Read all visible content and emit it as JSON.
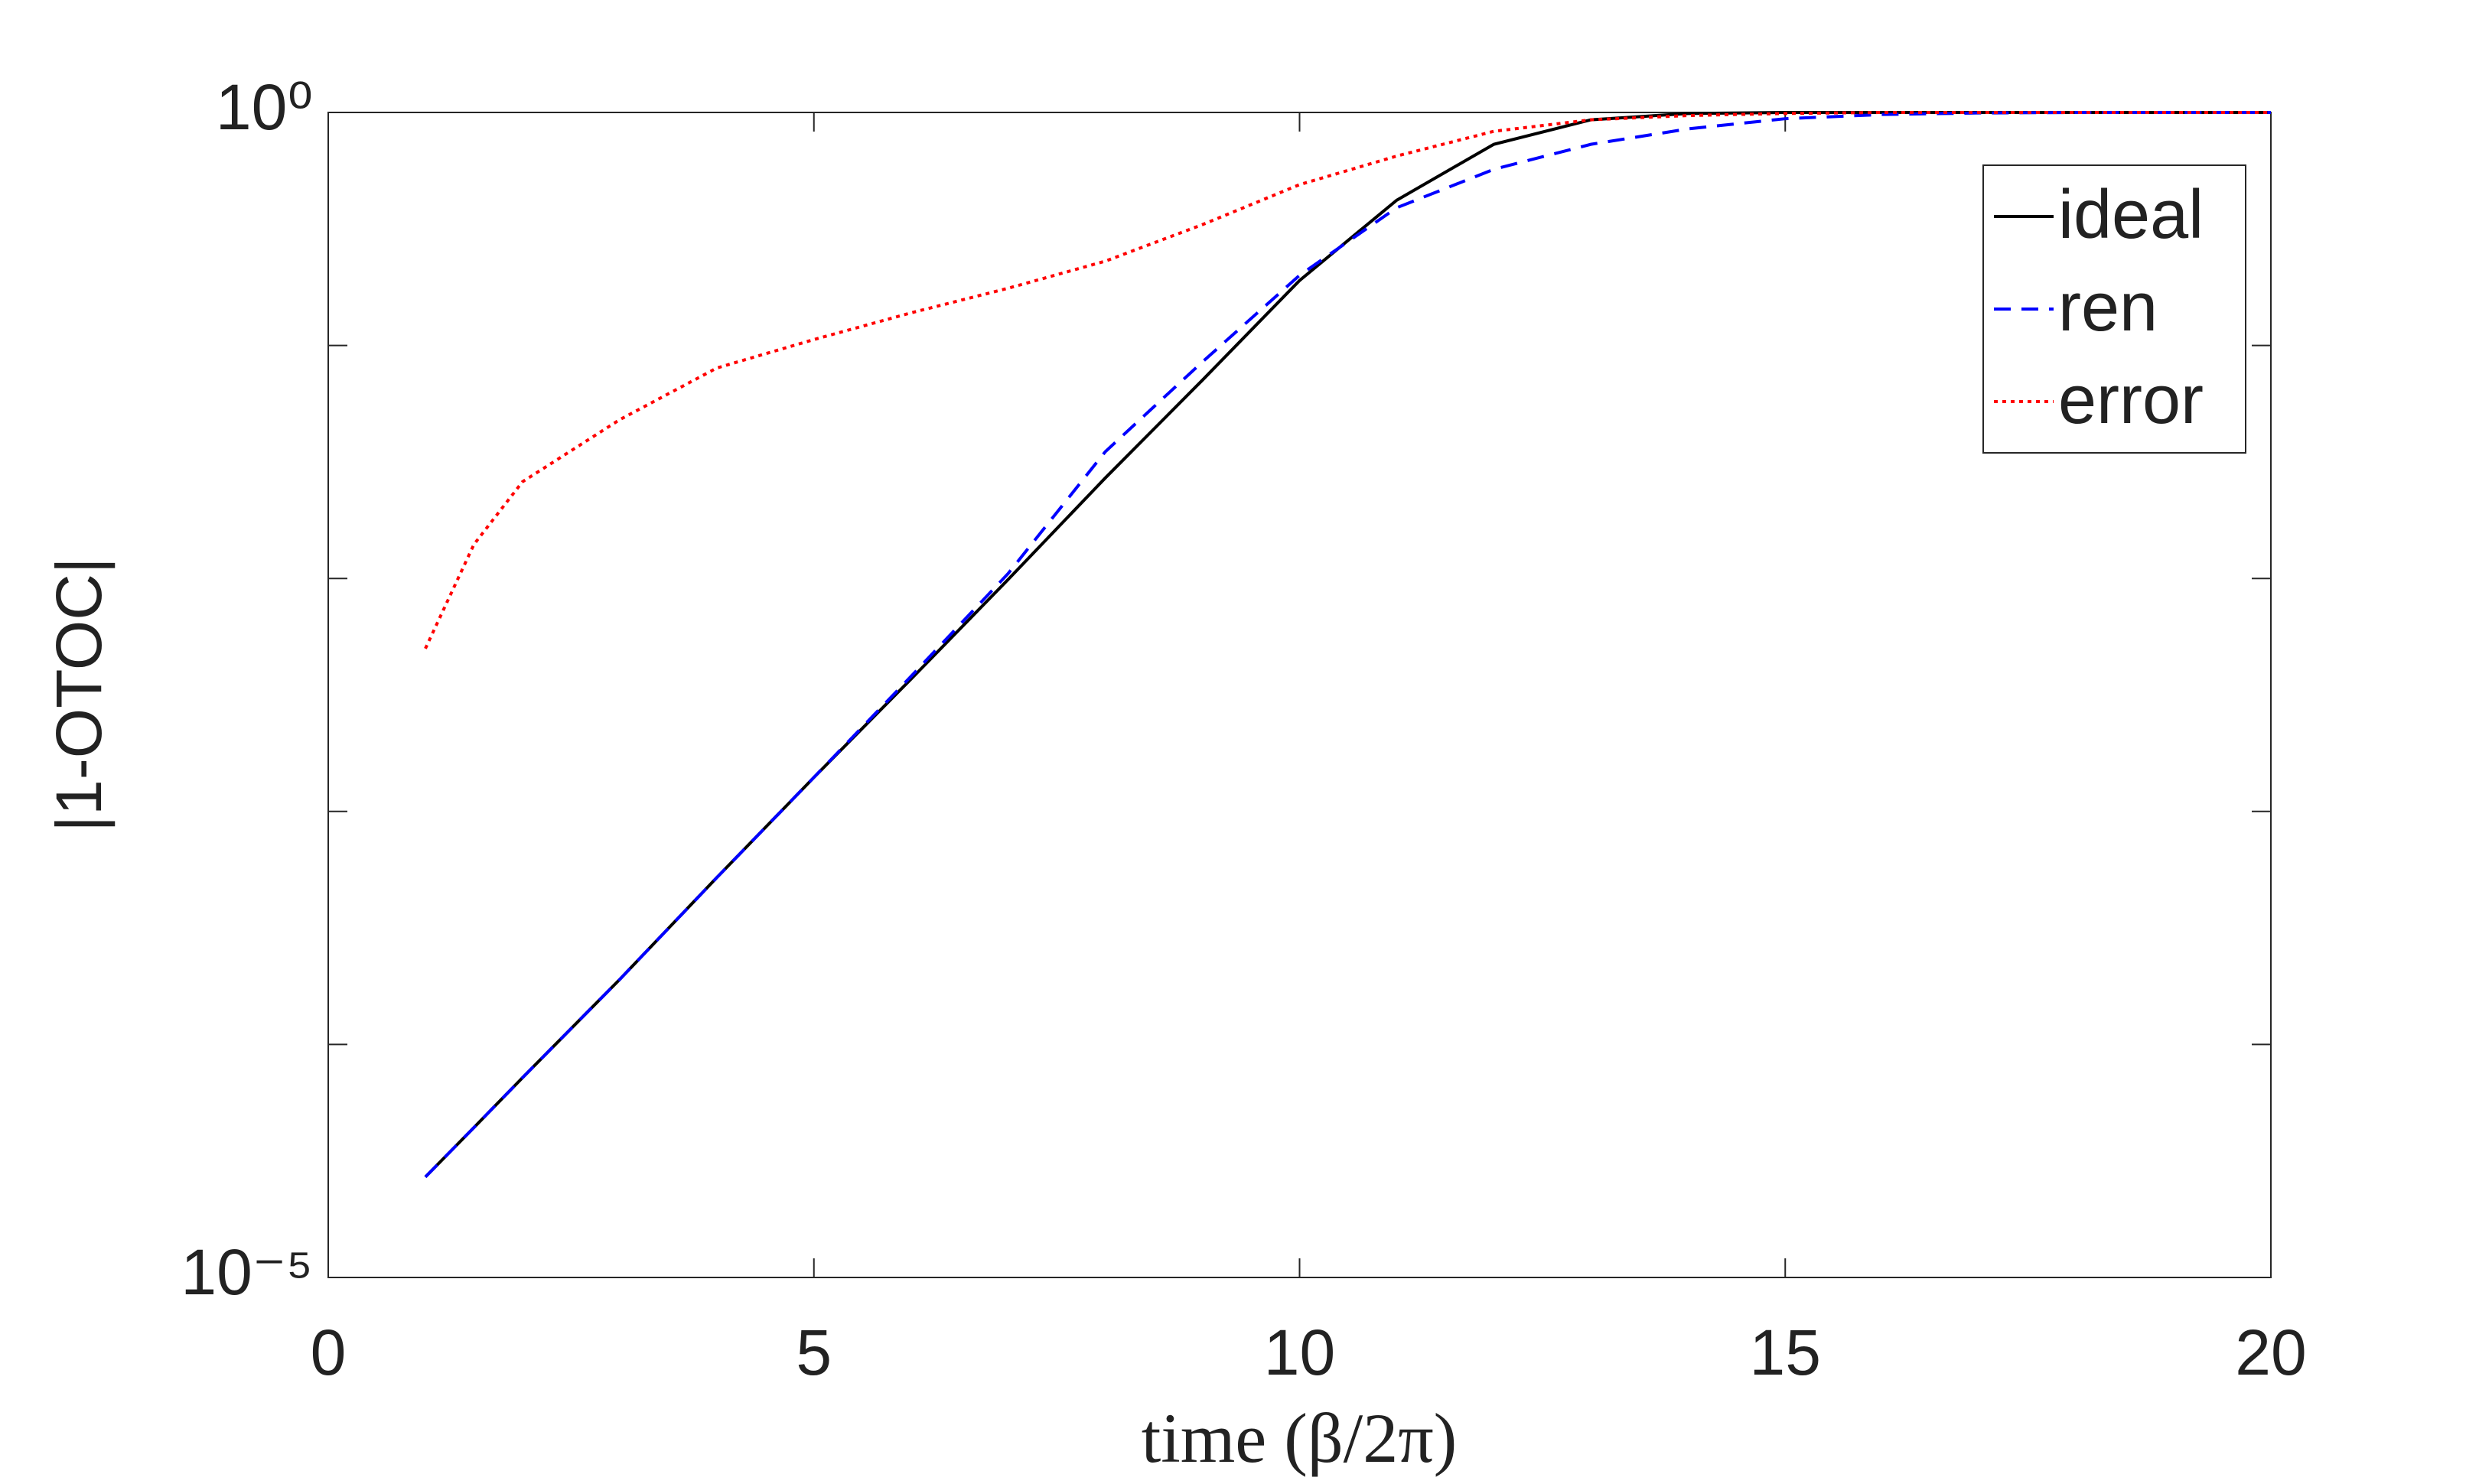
{
  "chart_data": {
    "type": "line",
    "xlabel": "time (β/2π)",
    "ylabel": "|1-OTOC|",
    "x": [
      1,
      1.5,
      2,
      3,
      4,
      5,
      6,
      7,
      8,
      9,
      10,
      11,
      12,
      13,
      14,
      15,
      16,
      17,
      18,
      19,
      20
    ],
    "series": [
      {
        "name": "ideal",
        "color": "#000000",
        "dash": "solid",
        "values": [
          2.7e-05,
          4.4e-05,
          7.2e-05,
          0.00019,
          0.00052,
          0.0014,
          0.0037,
          0.0099,
          0.027,
          0.071,
          0.19,
          0.42,
          0.73,
          0.93,
          0.99,
          1,
          1,
          1,
          1,
          1,
          1
        ]
      },
      {
        "name": "ren",
        "color": "#0000ff",
        "dash": "dashed",
        "values": [
          2.7e-05,
          4.4e-05,
          7.2e-05,
          0.00019,
          0.00052,
          0.0014,
          0.0038,
          0.0105,
          0.035,
          0.085,
          0.2,
          0.39,
          0.57,
          0.73,
          0.85,
          0.94,
          0.98,
          0.995,
          1,
          1,
          1
        ]
      },
      {
        "name": "error",
        "color": "#ff0000",
        "dash": "dotted",
        "values": [
          0.005,
          0.014,
          0.026,
          0.048,
          0.08,
          0.106,
          0.138,
          0.176,
          0.23,
          0.33,
          0.49,
          0.65,
          0.83,
          0.93,
          0.97,
          0.99,
          1,
          1,
          1,
          1,
          1
        ]
      }
    ],
    "xlim": [
      0,
      20
    ],
    "xticks": [
      0,
      5,
      10,
      15,
      20
    ],
    "ylim": [
      1e-05,
      1
    ],
    "yscale": "log",
    "yticks": [
      {
        "value": 1e-05,
        "label": "10⁻⁵"
      },
      {
        "value": 1,
        "label": "10⁰"
      }
    ],
    "yminorticks": [
      0.0001,
      0.001,
      0.01,
      0.1
    ],
    "legend": "northeast"
  }
}
